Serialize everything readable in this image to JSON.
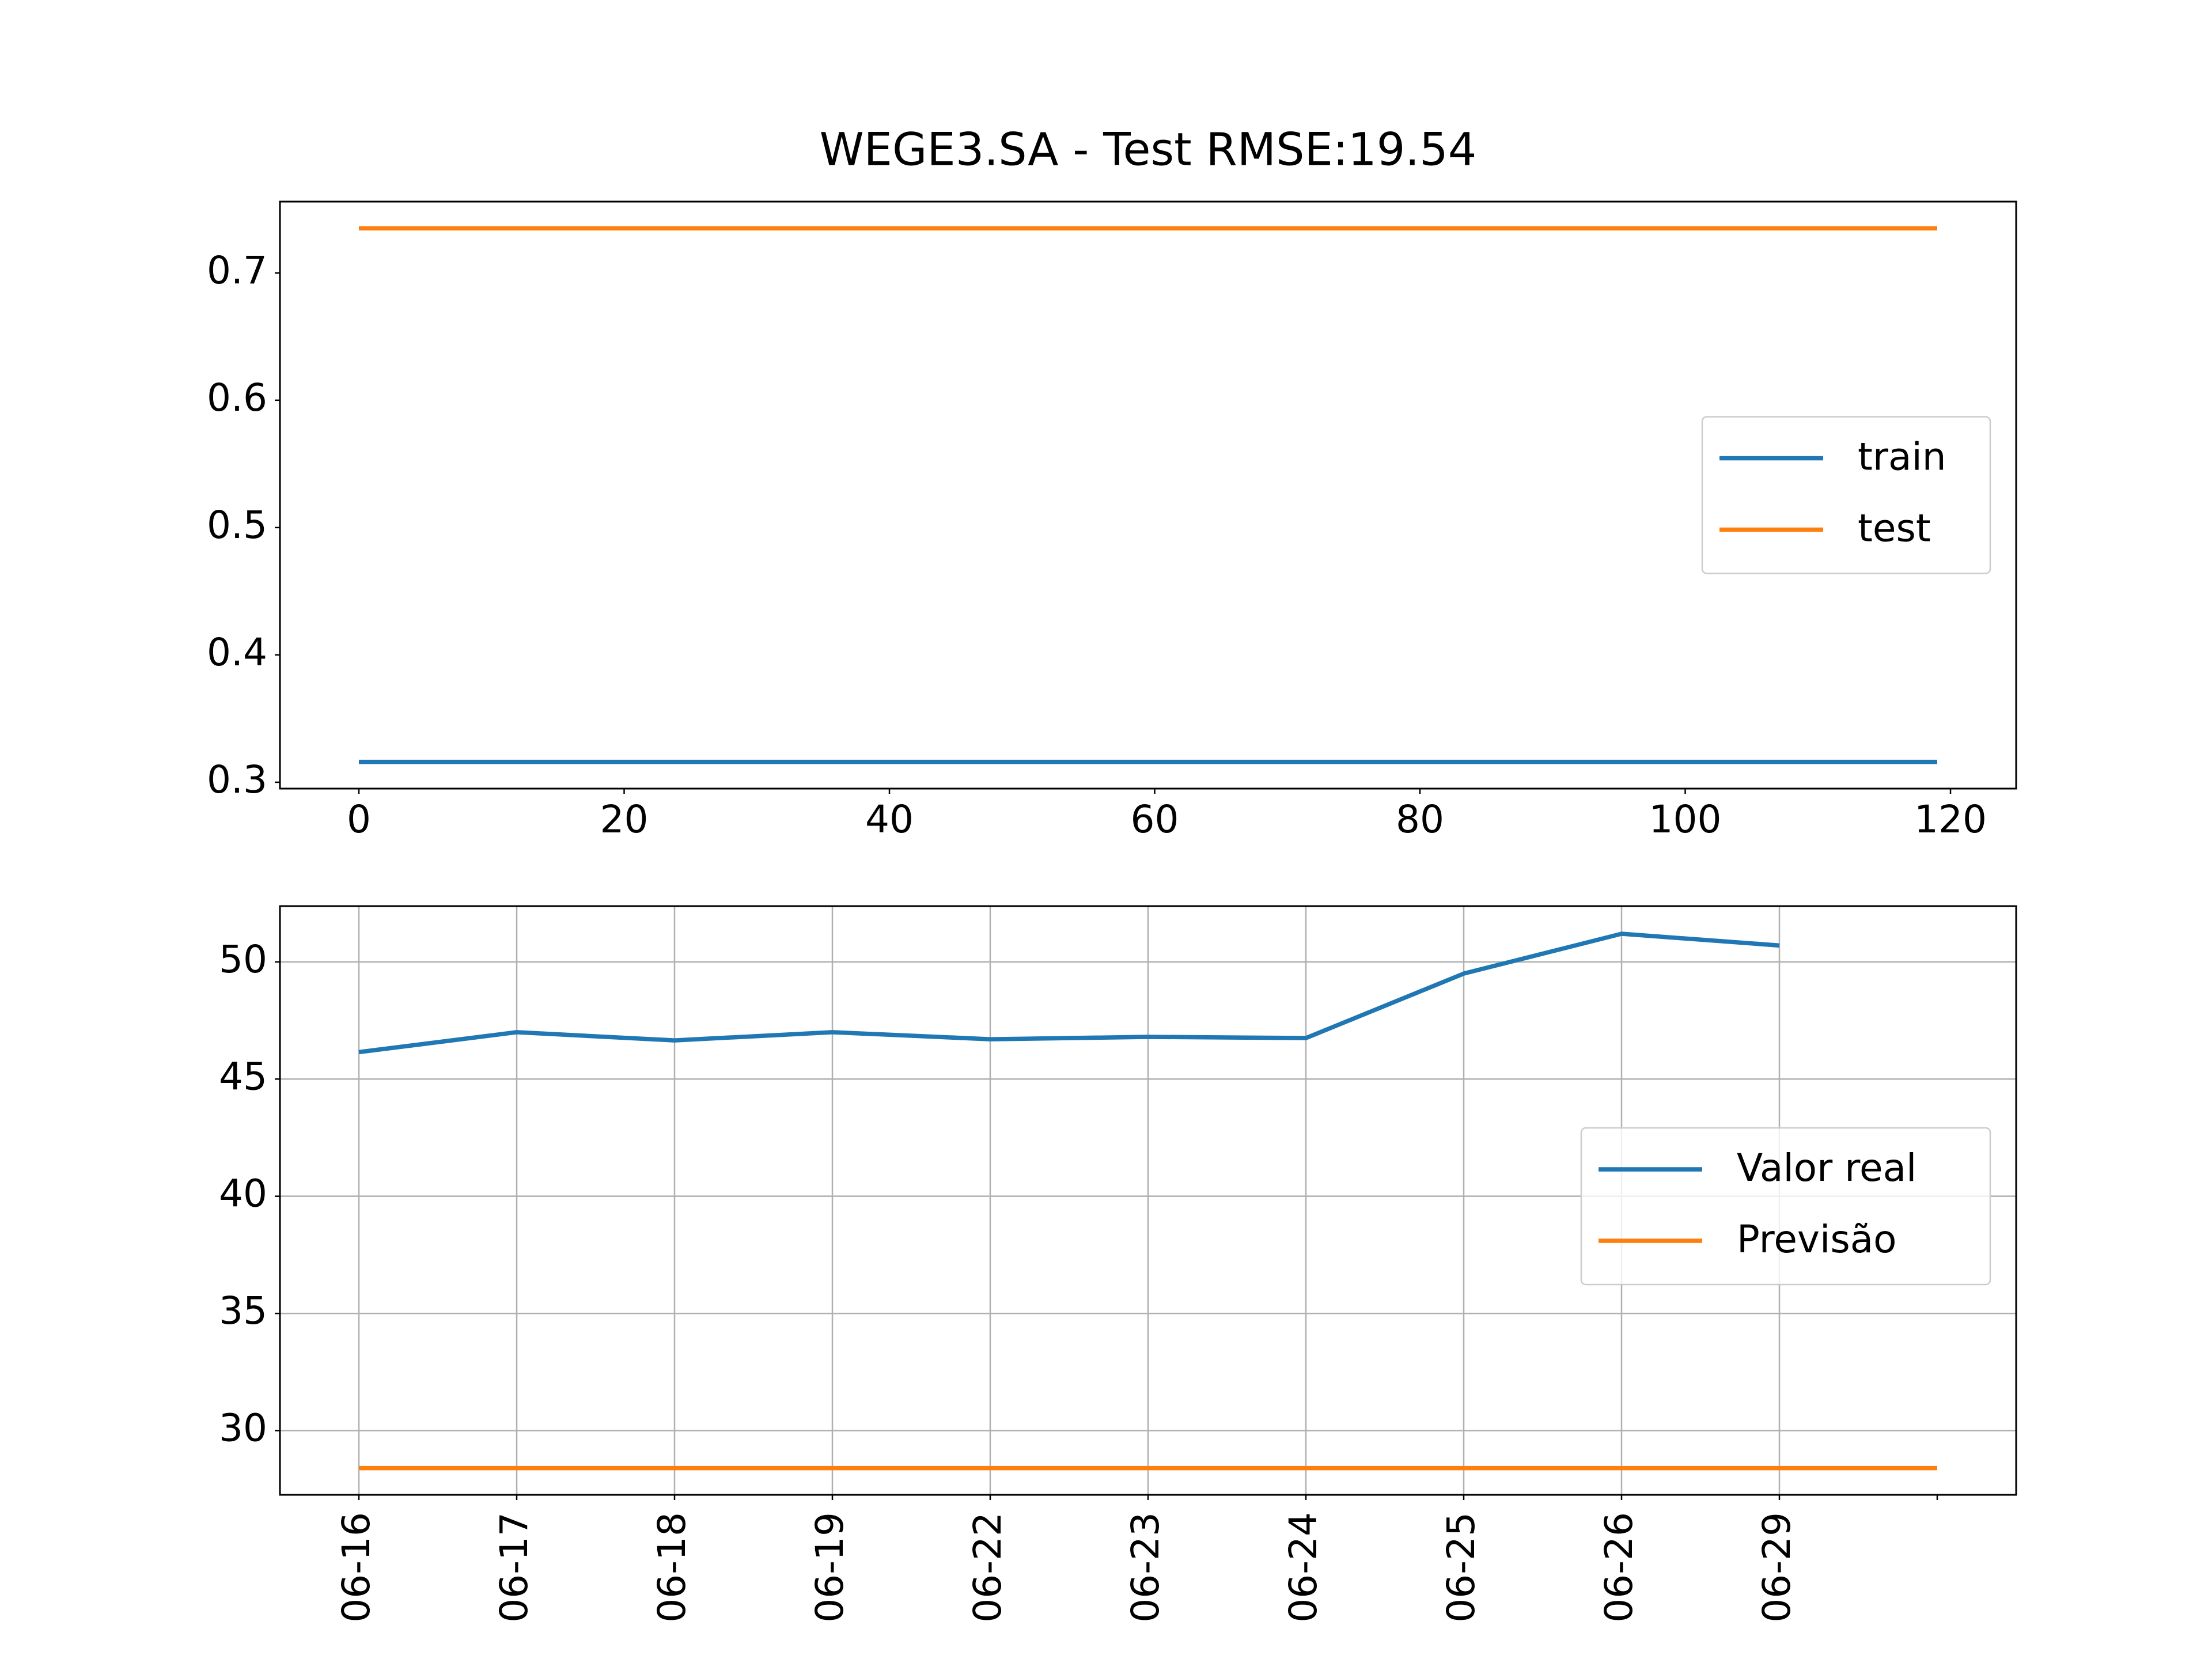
{
  "chart_data": [
    {
      "type": "line",
      "title": "WEGE3.SA - Test RMSE:19.54",
      "x": [
        0,
        119
      ],
      "series": [
        {
          "name": "train",
          "color": "#1f77b4",
          "values": [
            0.316,
            0.316
          ]
        },
        {
          "name": "test",
          "color": "#ff7f0e",
          "values": [
            0.735,
            0.735
          ]
        }
      ],
      "xlim": [
        -5.95,
        124.95
      ],
      "xticks": [
        0,
        20,
        40,
        60,
        80,
        100,
        120
      ],
      "ylim": [
        0.295,
        0.756
      ],
      "yticks": [
        0.3,
        0.4,
        0.5,
        0.6,
        0.7
      ],
      "grid": false,
      "legend": "center right"
    },
    {
      "type": "line",
      "categories": [
        "06-16",
        "06-17",
        "06-18",
        "06-19",
        "06-22",
        "06-23",
        "06-24",
        "06-25",
        "06-26",
        "06-29",
        null
      ],
      "series": [
        {
          "name": "Valor real",
          "color": "#1f77b4",
          "values": [
            46.15,
            47.0,
            46.65,
            47.0,
            46.7,
            46.8,
            46.75,
            49.5,
            51.2,
            50.7,
            null
          ]
        },
        {
          "name": "Previsão",
          "color": "#ff7f0e",
          "values": [
            28.4,
            28.4,
            28.4,
            28.4,
            28.4,
            28.4,
            28.4,
            28.4,
            28.4,
            28.4,
            28.4
          ]
        }
      ],
      "ylim": [
        27.26,
        52.38
      ],
      "yticks": [
        30,
        35,
        40,
        45,
        50
      ],
      "grid": true,
      "legend": "center right"
    }
  ]
}
